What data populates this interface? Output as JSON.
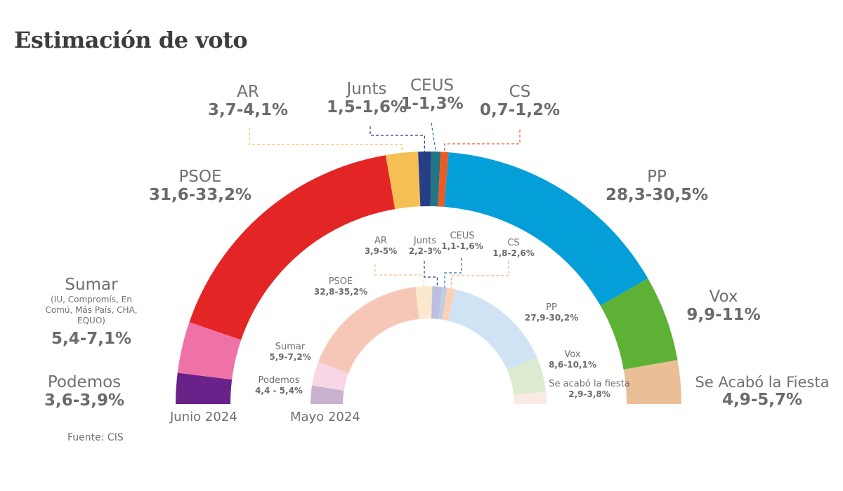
{
  "title": "Estimación de voto",
  "source": "Fuente: CIS",
  "chart_data": [
    {
      "type": "pie",
      "variant": "half-donut",
      "caption": "Junio 2024",
      "ring": "outer",
      "slices": [
        {
          "party": "Podemos",
          "range": "3,6-3,9%",
          "low": 3.6,
          "high": 3.9,
          "color": "#68228a"
        },
        {
          "party": "Sumar",
          "note": "(IU, Compromís, En Comú, Más País, CHA, EQUO)",
          "range": "5,4-7,1%",
          "low": 5.4,
          "high": 7.1,
          "color": "#ee72a6"
        },
        {
          "party": "PSOE",
          "range": "31,6-33,2%",
          "low": 31.6,
          "high": 33.2,
          "color": "#e42526"
        },
        {
          "party": "AR",
          "range": "3,7-4,1%",
          "low": 3.7,
          "high": 4.1,
          "color": "#f6bf55"
        },
        {
          "party": "Junts",
          "range": "1,5-1,6%",
          "low": 1.5,
          "high": 1.6,
          "color": "#263e85"
        },
        {
          "party": "CEUS",
          "range": "1-1,3%",
          "low": 1.0,
          "high": 1.3,
          "color": "#227585"
        },
        {
          "party": "CS",
          "range": "0,7-1,2%",
          "low": 0.7,
          "high": 1.2,
          "color": "#ee5a24"
        },
        {
          "party": "PP",
          "range": "28,3-30,5%",
          "low": 28.3,
          "high": 30.5,
          "color": "#049fd9"
        },
        {
          "party": "Vox",
          "range": "9,9-11%",
          "low": 9.9,
          "high": 11.0,
          "color": "#5db236"
        },
        {
          "party": "Se Acabó la Fiesta",
          "range": "4,9-5,7%",
          "low": 4.9,
          "high": 5.7,
          "color": "#ebbf96"
        }
      ]
    },
    {
      "type": "pie",
      "variant": "half-donut",
      "caption": "Mayo 2024",
      "ring": "inner",
      "slices": [
        {
          "party": "Podemos",
          "range": "4,4 - 5,4%",
          "low": 4.4,
          "high": 5.4,
          "color": "#c8b2cf"
        },
        {
          "party": "Sumar",
          "range": "5,9-7,2%",
          "low": 5.9,
          "high": 7.2,
          "color": "#f8d6e6"
        },
        {
          "party": "PSOE",
          "range": "32,8-35,2%",
          "low": 32.8,
          "high": 35.2,
          "color": "#f6c7b7"
        },
        {
          "party": "AR",
          "range": "3,9-5%",
          "low": 3.9,
          "high": 5.0,
          "color": "#fce8cc"
        },
        {
          "party": "Junts",
          "range": "2,2-3%",
          "low": 2.2,
          "high": 3.0,
          "color": "#bcbfe0"
        },
        {
          "party": "CEUS",
          "range": "1,1-1,6%",
          "low": 1.1,
          "high": 1.6,
          "color": "#bccfe0"
        },
        {
          "party": "CS",
          "range": "1,8-2,6%",
          "low": 1.8,
          "high": 2.6,
          "color": "#fccfb6"
        },
        {
          "party": "PP",
          "range": "27,9-30,2%",
          "low": 27.9,
          "high": 30.2,
          "color": "#cfe3f4"
        },
        {
          "party": "Vox",
          "range": "8,6-10,1%",
          "low": 8.6,
          "high": 10.1,
          "color": "#dcebd0"
        },
        {
          "party": "Se acabó la fiesta",
          "range": "2,9-3,8%",
          "low": 2.9,
          "high": 3.8,
          "color": "#fbeae3"
        }
      ]
    }
  ]
}
